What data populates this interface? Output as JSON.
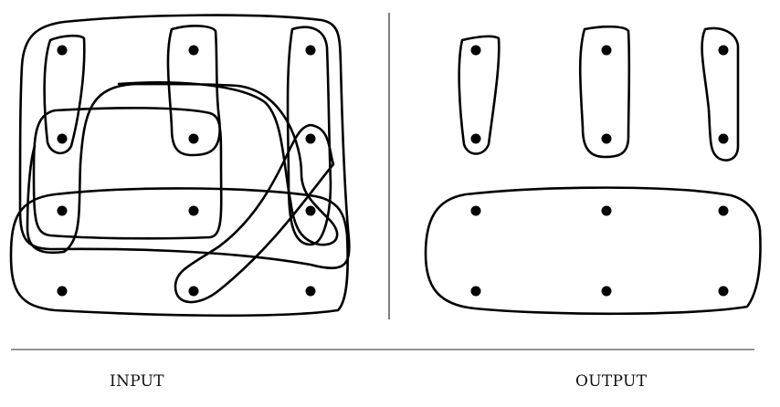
{
  "captions": {
    "input": "INPUT",
    "output": "OUTPUT"
  },
  "colors": {
    "stroke": "#000000",
    "divider": "#555555",
    "dot": "#000000",
    "background": "#ffffff"
  },
  "diagram": {
    "panels": [
      "input",
      "output"
    ],
    "input_points_per_row": 3,
    "input_rows": 4,
    "output_points_per_row": 3,
    "output_rows": 4
  }
}
